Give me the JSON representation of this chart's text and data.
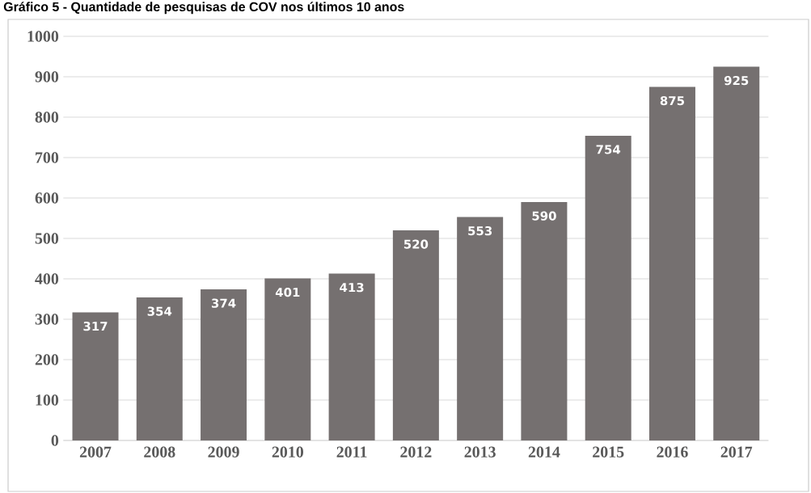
{
  "chart_data": {
    "type": "bar",
    "title": "Gráfico 5 - Quantidade de pesquisas de COV nos últimos 10 anos",
    "categories": [
      "2007",
      "2008",
      "2009",
      "2010",
      "2011",
      "2012",
      "2013",
      "2014",
      "2015",
      "2016",
      "2017"
    ],
    "values": [
      317,
      354,
      374,
      401,
      413,
      520,
      553,
      590,
      754,
      875,
      925
    ],
    "color": "#757070",
    "ylim": [
      0,
      1000
    ],
    "yticks": [
      0,
      100,
      200,
      300,
      400,
      500,
      600,
      700,
      800,
      900,
      1000
    ],
    "grid": "y",
    "data_labels": true
  }
}
